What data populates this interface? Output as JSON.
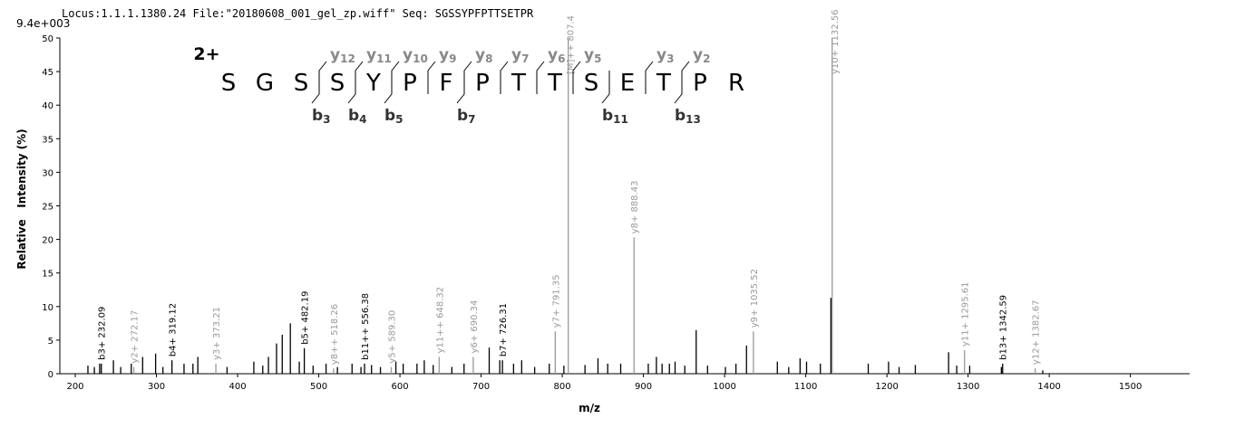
{
  "chart_data": {
    "type": "spectrum",
    "header": "Locus:1.1.1.1380.24 File:\"20180608_001_gel_zp.wiff\"   Seq: SGSSYPFPTTSETPR",
    "scale_label": "9.4e+003",
    "xlabel": "m/z",
    "ylabel": "Relative   Intensity (%)",
    "xlim": [
      181,
      1573
    ],
    "ylim": [
      0,
      50
    ],
    "xticks": [
      200,
      300,
      400,
      500,
      600,
      700,
      800,
      900,
      1000,
      1100,
      1200,
      1300,
      1400,
      1500
    ],
    "yticks": [
      0,
      5,
      10,
      15,
      20,
      25,
      30,
      35,
      40,
      45,
      50
    ],
    "peptide": {
      "charge": "2+",
      "sequence": [
        "S",
        "G",
        "S",
        "S",
        "Y",
        "P",
        "F",
        "P",
        "T",
        "T",
        "S",
        "E",
        "T",
        "P",
        "R"
      ],
      "y_ions": [
        null,
        null,
        {
          "ion": "y",
          "num": "12"
        },
        {
          "ion": "y",
          "num": "11"
        },
        {
          "ion": "y",
          "num": "10"
        },
        {
          "ion": "y",
          "num": "9"
        },
        {
          "ion": "y",
          "num": "8"
        },
        {
          "ion": "y",
          "num": "7"
        },
        {
          "ion": "y",
          "num": "6"
        },
        {
          "ion": "y",
          "num": "5"
        },
        null,
        {
          "ion": "y",
          "num": "3"
        },
        {
          "ion": "y",
          "num": "2"
        },
        null
      ],
      "b_ions": [
        null,
        null,
        {
          "ion": "b",
          "num": "3"
        },
        {
          "ion": "b",
          "num": "4"
        },
        {
          "ion": "b",
          "num": "5"
        },
        null,
        {
          "ion": "b",
          "num": "7"
        },
        null,
        null,
        null,
        {
          "ion": "b",
          "num": "11"
        },
        null,
        {
          "ion": "b",
          "num": "13"
        },
        null
      ]
    },
    "peaks": {
      "color": "#000000",
      "x": [
        215.6,
        223.5,
        230,
        247,
        256,
        269,
        283,
        299,
        308,
        334,
        345,
        351,
        387,
        420,
        431,
        438,
        448,
        455,
        465,
        476,
        493,
        509,
        523,
        541,
        552,
        565,
        576,
        595,
        604,
        621,
        630,
        641,
        664,
        679,
        710,
        723,
        740,
        750,
        766,
        784,
        802,
        828,
        844,
        856,
        872,
        906,
        916,
        923,
        932,
        939,
        951,
        965,
        979,
        1001,
        1014,
        1027,
        1065,
        1079,
        1093,
        1101,
        1118,
        1131,
        1177,
        1202,
        1215,
        1235,
        1276,
        1286,
        1302,
        1341,
        1392
      ],
      "values": [
        1.2,
        1,
        1.5,
        2,
        1,
        1.5,
        2.5,
        3,
        1,
        1.5,
        1.5,
        2.5,
        1,
        1.8,
        1.2,
        2.5,
        4.5,
        5.8,
        7.5,
        1.8,
        1.2,
        1.5,
        1,
        1.5,
        1,
        1.3,
        1,
        1.8,
        1.5,
        1.5,
        2,
        1.3,
        1,
        1.5,
        3.9,
        2,
        1.5,
        2,
        1,
        1.5,
        1.2,
        1.3,
        2.3,
        1.5,
        1.5,
        1.5,
        2.5,
        1.5,
        1.5,
        1.8,
        1.2,
        6.5,
        1.2,
        1,
        1.5,
        4.2,
        1.8,
        1,
        2.3,
        1.8,
        1.5,
        11.3,
        1.5,
        1.8,
        1,
        1.3,
        3.2,
        1.2,
        1.2,
        1,
        0.5
      ]
    },
    "annotated": {
      "x": [
        232.09,
        272.17,
        319.12,
        373.21,
        482.19,
        518.26,
        556.38,
        589.3,
        648.32,
        690.34,
        726.31,
        791.35,
        807.4,
        888.43,
        1035.52,
        1132.56,
        1295.61,
        1342.59,
        1382.67
      ],
      "values": [
        1.5,
        1,
        2,
        1.5,
        3.8,
        0.8,
        1.5,
        1,
        2.5,
        2.5,
        2,
        6.3,
        50,
        20.3,
        6.3,
        50,
        3.5,
        1.5,
        0.8
      ],
      "labels": [
        "b3+ 232.09",
        "y2+ 272.17",
        "b4+ 319.12",
        "y3+ 373.21",
        "b5+ 482.19",
        "y8++ 518.26",
        "b11++ 556.38",
        "y5+ 589.30",
        "y11++ 648.32",
        "y6+ 690.34",
        "b7+ 726.31",
        "y7+ 791.35",
        "[M]++ 807.4",
        "y8+ 888.43",
        "y9+ 1035.52",
        "y10+ 1132.56",
        "y11+ 1295.61",
        "b13+ 1342.59",
        "y12+ 1382.67"
      ],
      "colors": [
        "#000000",
        "#999999",
        "#000000",
        "#999999",
        "#000000",
        "#999999",
        "#000000",
        "#999999",
        "#999999",
        "#999999",
        "#000000",
        "#999999",
        "#999999",
        "#999999",
        "#999999",
        "#999999",
        "#999999",
        "#000000",
        "#999999"
      ]
    }
  }
}
